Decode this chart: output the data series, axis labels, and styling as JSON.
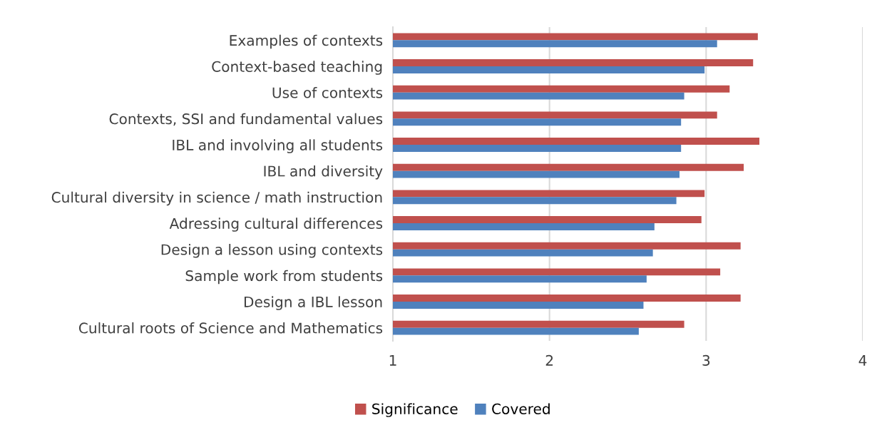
{
  "chart_data": {
    "type": "bar",
    "orientation": "horizontal",
    "categories": [
      "Examples of contexts",
      "Context-based teaching",
      "Use of contexts",
      "Contexts, SSI and fundamental values",
      "IBL and involving all students",
      "IBL and diversity",
      "Cultural diversity in science / math instruction",
      "Adressing cultural differences",
      "Design a lesson using contexts",
      "Sample work from students",
      "Design a IBL lesson",
      "Cultural roots of Science and Mathematics"
    ],
    "series": [
      {
        "name": "Significance",
        "color": "#c0504d",
        "values": [
          3.33,
          3.3,
          3.15,
          3.07,
          3.34,
          3.24,
          2.99,
          2.97,
          3.22,
          3.09,
          3.22,
          2.86
        ]
      },
      {
        "name": "Covered",
        "color": "#4f81bd",
        "values": [
          3.07,
          2.99,
          2.86,
          2.84,
          2.84,
          2.83,
          2.81,
          2.67,
          2.66,
          2.62,
          2.6,
          2.57
        ]
      }
    ],
    "xlim": [
      1,
      4
    ],
    "xticks": [
      1,
      2,
      3,
      4
    ],
    "grid": "x",
    "legend": "bottom"
  }
}
